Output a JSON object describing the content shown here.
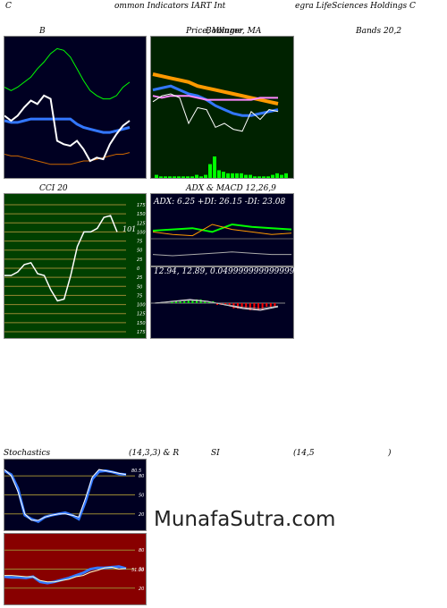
{
  "header": {
    "t1": "C",
    "t2": "ommon  Indicators IART Int",
    "t3": "egra  LifeSciences Holdings C"
  },
  "labels": {
    "bollinger_b": "B",
    "price_ma_a": "Price,  Volume,  MA",
    "price_ma_b": "Bollinger",
    "bands": "Bands 20,2",
    "cci": "CCI 20",
    "adx_macd": "ADX  & MACD 12,26,9",
    "stoch": "Stochastics",
    "stoch_params": "(14,3,3) & R",
    "rsi": "SI",
    "rsi_params": "(14,5",
    "close_paren": ")"
  },
  "adx_text": "ADX: 6.25  +DI: 26.15 -DI: 23.08",
  "macd_text": "12.94,   12.89,   0.0499999999999999",
  "watermark": "MunafaSutra.com",
  "colors": {
    "panel_dark": "#000022",
    "panel_green": "#002200",
    "panel_cci": "#004000",
    "panel_rsi": "#880000",
    "blue": "#3377ff",
    "orange": "#ff9900",
    "green": "#00ff00",
    "white": "#ffffff"
  },
  "chart_data": [
    {
      "type": "line",
      "title": "Bollinger Bands 20,2",
      "series": [
        {
          "values": [
            52,
            50,
            52,
            55,
            58,
            63,
            67,
            72,
            75,
            74,
            70,
            63,
            56,
            50,
            47,
            45,
            45,
            47,
            52,
            55
          ]
        },
        {
          "values": [
            32,
            31,
            31,
            32,
            33,
            33,
            33,
            33,
            33,
            33,
            33,
            30,
            28,
            27,
            26,
            25,
            25,
            26,
            27,
            28
          ]
        },
        {
          "values": [
            12,
            11,
            11,
            10,
            9,
            8,
            7,
            6,
            6,
            6,
            6,
            7,
            8,
            8,
            9,
            10,
            11,
            12,
            12,
            13
          ]
        },
        {
          "values": [
            35,
            32,
            35,
            40,
            44,
            42,
            47,
            45,
            20,
            18,
            17,
            20,
            15,
            8,
            10,
            9,
            18,
            24,
            29,
            32
          ]
        }
      ]
    },
    {
      "type": "line",
      "title": "Price, Volume, MA",
      "series": [
        {
          "values": [
            110,
            109,
            108,
            107,
            106,
            104,
            103,
            102,
            101,
            100,
            99,
            98,
            97,
            96,
            95
          ]
        },
        {
          "values": [
            102,
            103,
            104,
            102,
            100,
            99,
            97,
            94,
            92,
            90,
            89,
            89,
            90,
            91,
            92
          ]
        },
        {
          "values": [
            99,
            98,
            99,
            99,
            99,
            98,
            97,
            97,
            97,
            97,
            97,
            97,
            98,
            98,
            98
          ]
        },
        {
          "values": [
            96,
            99,
            100,
            98,
            85,
            93,
            92,
            83,
            85,
            82,
            81,
            91,
            87,
            92,
            91
          ]
        }
      ],
      "volume": [
        2,
        1,
        1,
        1,
        1,
        1,
        1,
        1,
        1,
        2,
        1,
        2,
        9,
        14,
        5,
        4,
        3,
        3,
        3,
        3,
        2,
        2,
        1,
        1,
        1,
        1,
        2,
        3,
        2,
        3
      ]
    },
    {
      "type": "line",
      "title": "CCI 20",
      "ylim": [
        -175,
        175
      ],
      "y_ticks": [
        175,
        150,
        125,
        100,
        75,
        50,
        25,
        0,
        -25,
        -50,
        -75,
        -100,
        -125,
        -150,
        -175
      ],
      "last_value_label": "101",
      "series": [
        {
          "values": [
            -20,
            -20,
            -10,
            10,
            15,
            -15,
            -20,
            -60,
            -90,
            -85,
            -20,
            60,
            100,
            100,
            110,
            140,
            145,
            100
          ]
        }
      ]
    },
    {
      "type": "line",
      "title": "ADX & MACD 12,26,9",
      "series": [
        {
          "name": "ADX",
          "values": [
            6,
            5,
            6,
            7,
            8,
            7,
            6,
            6
          ]
        },
        {
          "name": "+DI",
          "values": [
            25,
            26,
            27,
            24,
            30,
            28,
            27,
            26
          ]
        },
        {
          "name": "-DI",
          "values": [
            24,
            22,
            21,
            30,
            26,
            24,
            22,
            23
          ]
        },
        {
          "name": "MACD",
          "values": [
            0,
            1,
            2,
            1,
            -1,
            -3,
            -4,
            -2
          ]
        }
      ]
    },
    {
      "type": "line",
      "title": "Stochastics (14,3,3)",
      "y_ticks": [
        80,
        50,
        20
      ],
      "last_value_label": "80.5",
      "series": [
        {
          "values": [
            88,
            82,
            60,
            18,
            12,
            8,
            15,
            18,
            20,
            22,
            18,
            12,
            40,
            75,
            87,
            88,
            86,
            83,
            82
          ]
        },
        {
          "values": [
            90,
            80,
            55,
            20,
            10,
            10,
            15,
            18,
            20,
            20,
            18,
            15,
            45,
            78,
            90,
            88,
            86,
            84,
            82
          ]
        }
      ]
    },
    {
      "type": "line",
      "title": "RSI (14,5)",
      "y_ticks": [
        80,
        50,
        20
      ],
      "last_value_label": "51.03",
      "series": [
        {
          "values": [
            38,
            37,
            37,
            36,
            38,
            30,
            28,
            30,
            33,
            36,
            40,
            44,
            50,
            52,
            52,
            53,
            54,
            51
          ]
        },
        {
          "values": [
            40,
            40,
            39,
            38,
            38,
            32,
            30,
            30,
            32,
            34,
            38,
            40,
            45,
            48,
            52,
            53,
            50,
            51
          ]
        }
      ]
    }
  ]
}
